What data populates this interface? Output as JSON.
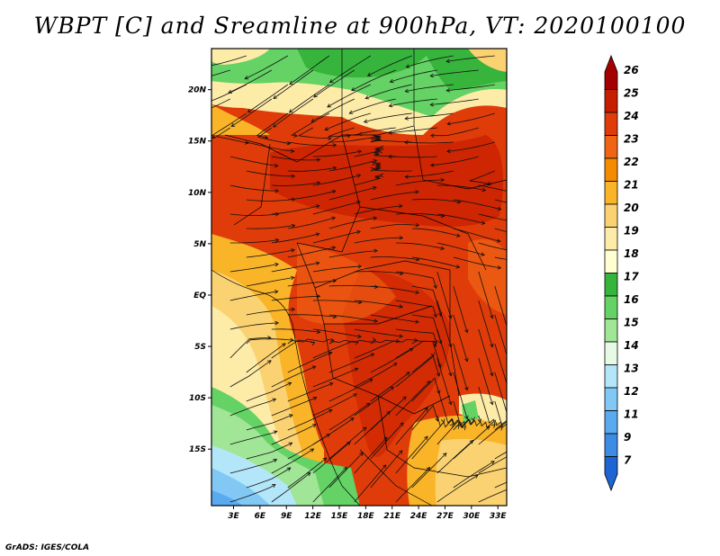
{
  "title": "WBPT [C] and Sreamline at 900hPa, VT: 2020100100",
  "credit": "GrADS: IGES/COLA",
  "map": {
    "lat_range": [
      -20.5,
      24
    ],
    "lon_range": [
      0.5,
      34
    ],
    "lat_ticks": [
      {
        "lat": 20,
        "label": "20N"
      },
      {
        "lat": 15,
        "label": "15N"
      },
      {
        "lat": 10,
        "label": "10N"
      },
      {
        "lat": 5,
        "label": "5N"
      },
      {
        "lat": 0,
        "label": "EQ"
      },
      {
        "lat": -5,
        "label": "5S"
      },
      {
        "lat": -10,
        "label": "10S"
      },
      {
        "lat": -15,
        "label": "15S"
      }
    ],
    "lon_ticks": [
      {
        "lon": 3,
        "label": "3E"
      },
      {
        "lon": 6,
        "label": "6E"
      },
      {
        "lon": 9,
        "label": "9E"
      },
      {
        "lon": 12,
        "label": "12E"
      },
      {
        "lon": 15,
        "label": "15E"
      },
      {
        "lon": 18,
        "label": "18E"
      },
      {
        "lon": 21,
        "label": "21E"
      },
      {
        "lon": 24,
        "label": "24E"
      },
      {
        "lon": 27,
        "label": "27E"
      },
      {
        "lon": 30,
        "label": "30E"
      },
      {
        "lon": 33,
        "label": "33E"
      }
    ]
  },
  "colorbar": {
    "labels": [
      "26",
      "25",
      "24",
      "23",
      "22",
      "21",
      "20",
      "19",
      "18",
      "17",
      "16",
      "15",
      "14",
      "13",
      "12",
      "11",
      "9",
      "7"
    ],
    "colors": [
      "#a50000",
      "#c81e00",
      "#e03c0a",
      "#f06414",
      "#f58c00",
      "#f9b428",
      "#fbd272",
      "#fdeba8",
      "#ffffd2",
      "#37b43c",
      "#64d264",
      "#a0e696",
      "#e6fae6",
      "#b4e6fa",
      "#82c8f5",
      "#5aaaf0",
      "#3c8ce6",
      "#1e64d2"
    ]
  },
  "colors": {
    "hot": "#e03c0a",
    "warm": "#f9b428",
    "green": "#64d264",
    "blue": "#82c8f5"
  }
}
